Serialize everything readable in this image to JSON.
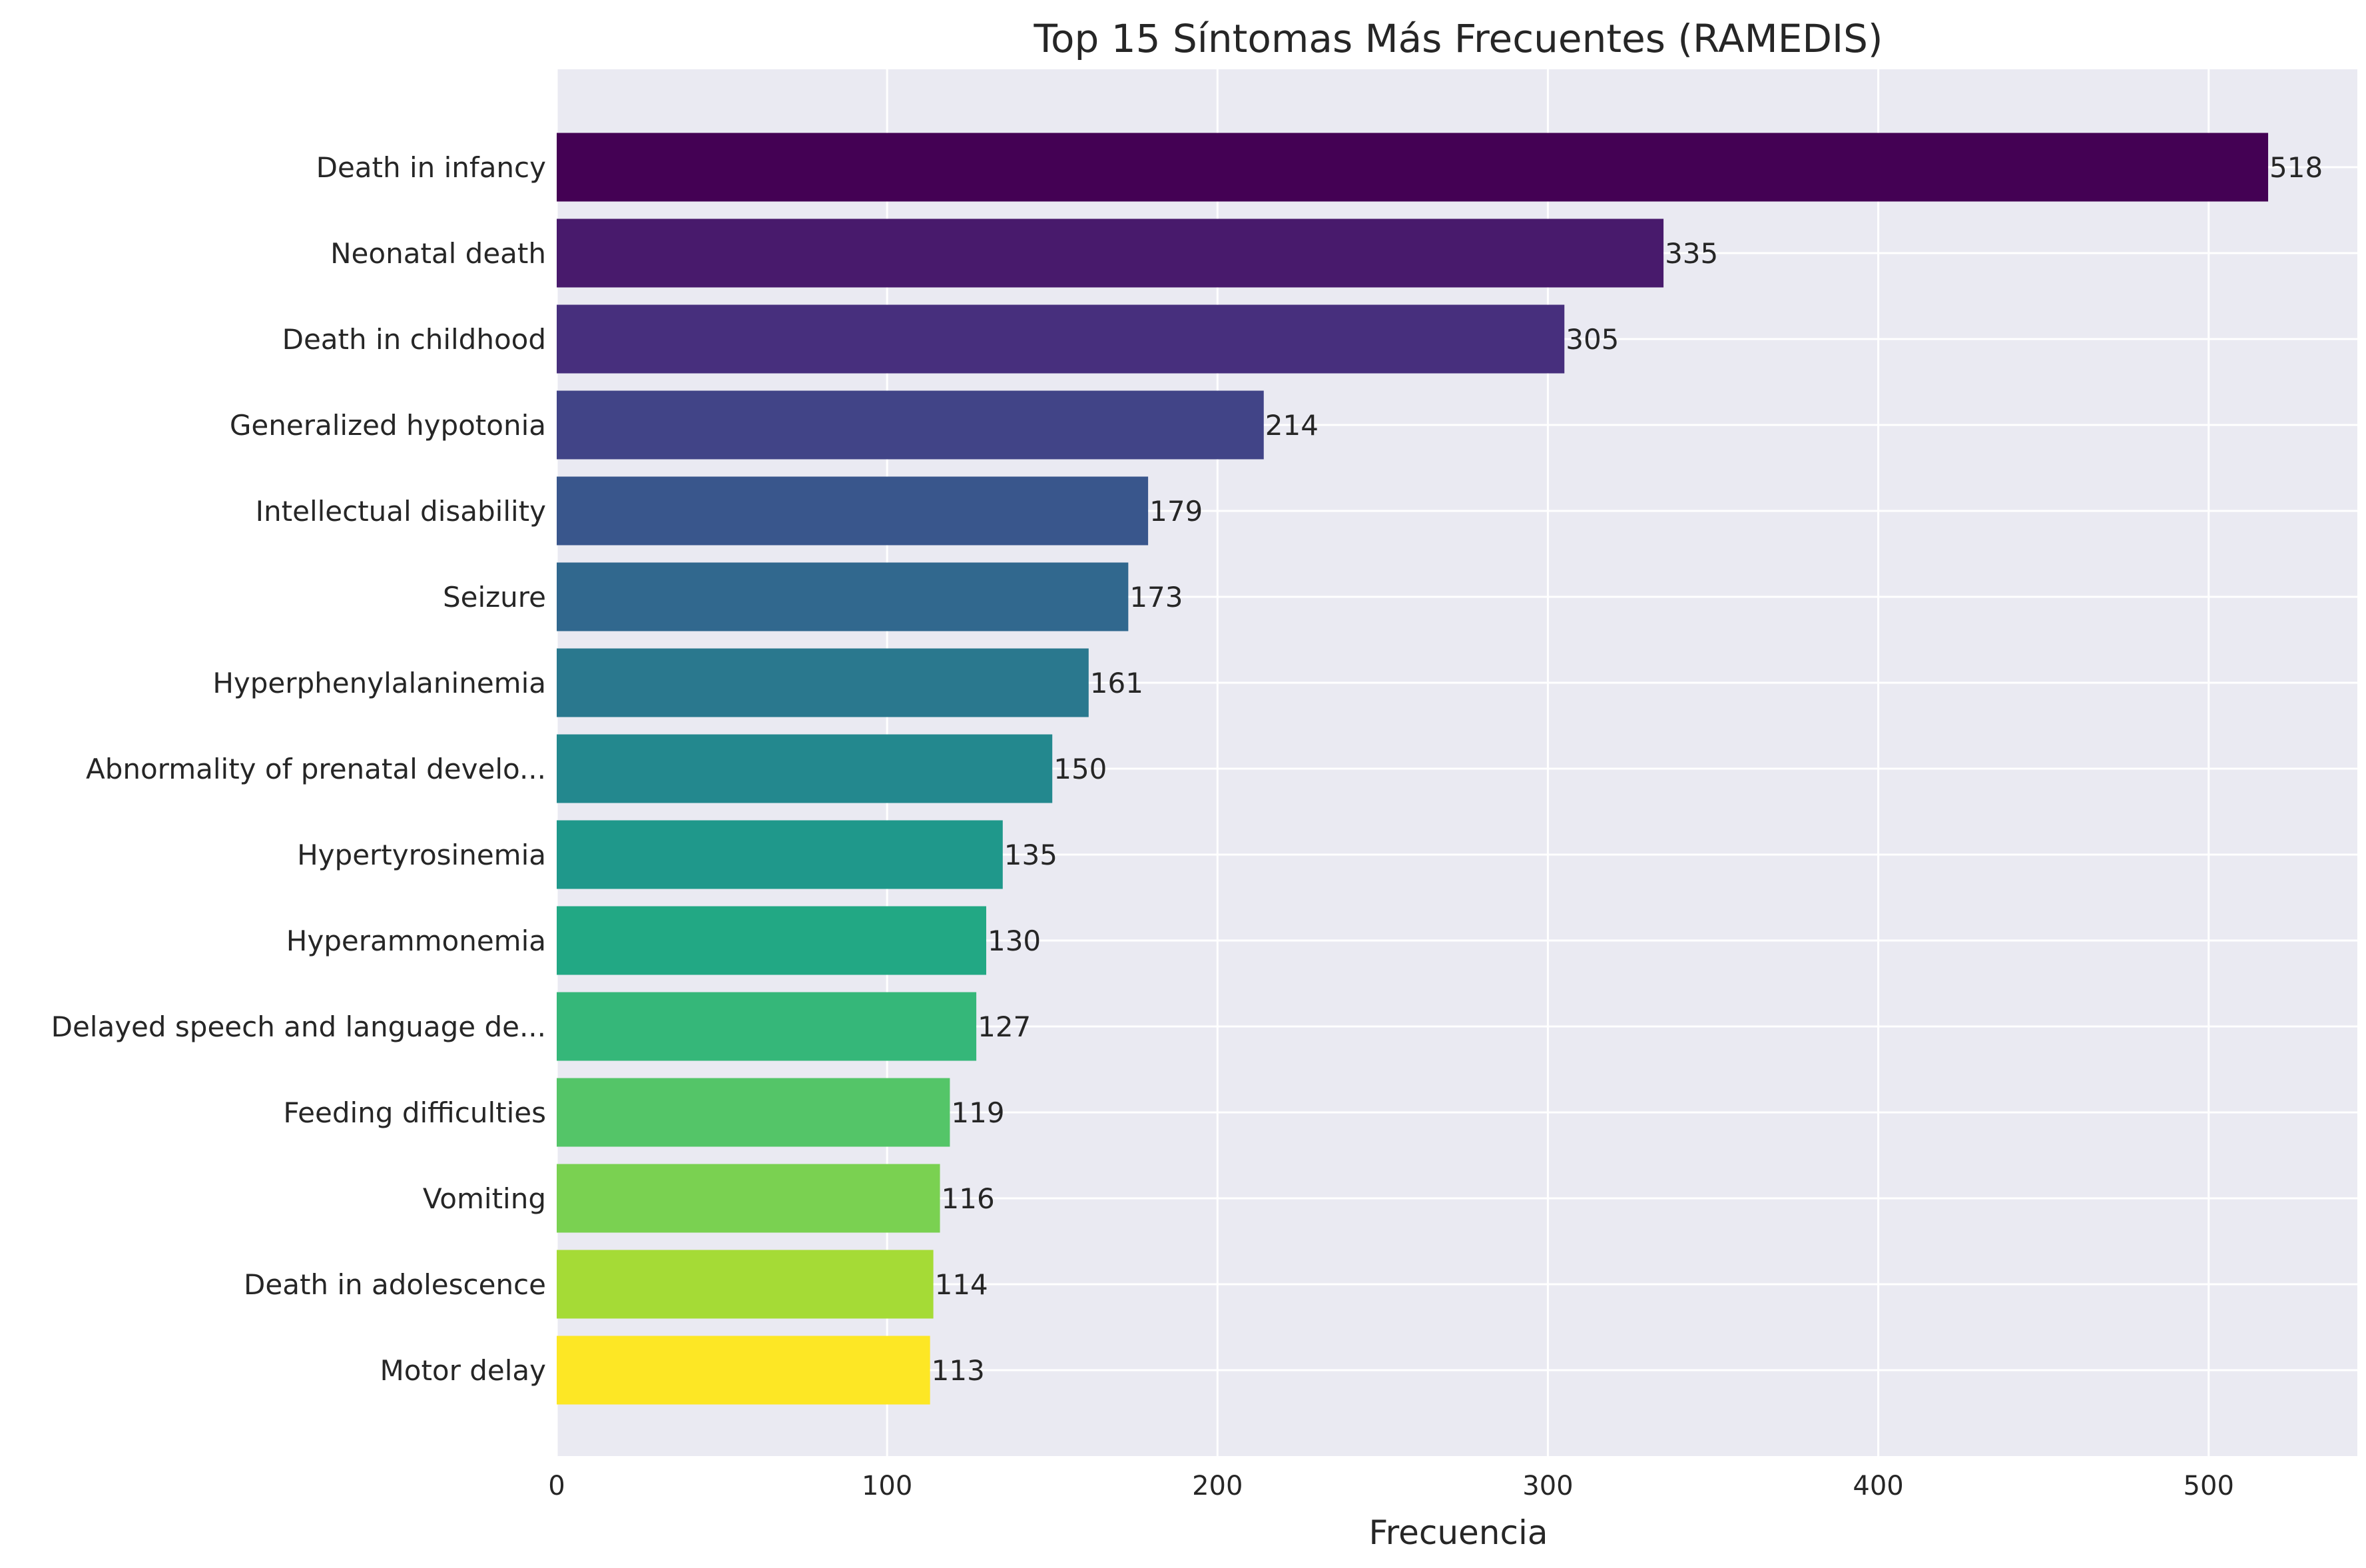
{
  "chart_data": {
    "type": "bar",
    "orientation": "horizontal",
    "title": "Top 15 Síntomas Más Frecuentes (RAMEDIS)",
    "xlabel": "Frecuencia",
    "ylabel": "",
    "xlim": [
      0,
      545
    ],
    "xticks": [
      0,
      100,
      200,
      300,
      400,
      500
    ],
    "grid": true,
    "background": "#eaeaf2",
    "categories": [
      "Death in infancy",
      "Neonatal death",
      "Death in childhood",
      "Generalized hypotonia",
      "Intellectual disability",
      "Seizure",
      "Hyperphenylalaninemia",
      "Abnormality of prenatal develo...",
      "Hypertyrosinemia",
      "Hyperammonemia",
      "Delayed speech and language de...",
      "Feeding difficulties",
      "Vomiting",
      "Death in adolescence",
      "Motor delay"
    ],
    "values": [
      518,
      335,
      305,
      214,
      179,
      173,
      161,
      150,
      135,
      130,
      127,
      119,
      116,
      114,
      113
    ],
    "colors": [
      "#440154",
      "#481a6c",
      "#472f7d",
      "#414487",
      "#39568c",
      "#31688e",
      "#2a788e",
      "#23888e",
      "#1f988b",
      "#22a884",
      "#35b779",
      "#54c568",
      "#7ad151",
      "#a5db36",
      "#fde725"
    ]
  }
}
